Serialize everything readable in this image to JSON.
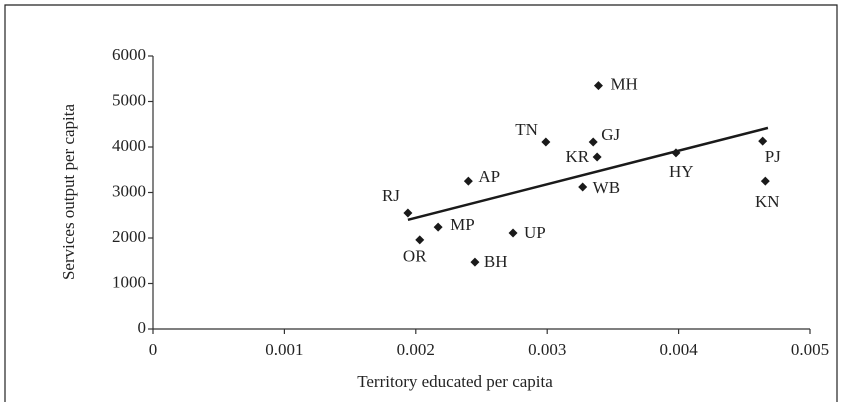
{
  "chart_data": {
    "type": "scatter",
    "x_label": "Territory educated per capita",
    "y_label": "Services output per capita",
    "point_labels": [
      "MH",
      "TN",
      "GJ",
      "KR",
      "AP",
      "WB",
      "HY",
      "PJ",
      "KN",
      "RJ",
      "MP",
      "OR",
      "UP",
      "BH"
    ],
    "x": [
      0.00339,
      0.00299,
      0.00335,
      0.00338,
      0.0024,
      0.00327,
      0.00398,
      0.00464,
      0.00466,
      0.00194,
      0.00217,
      0.00203,
      0.00274,
      0.00245
    ],
    "values": [
      5350,
      4110,
      4110,
      3780,
      3250,
      3120,
      3870,
      4130,
      3250,
      2550,
      2240,
      1960,
      2110,
      1470
    ],
    "color": "#1a1a1a",
    "trend_line": {
      "x": [
        0.00194,
        0.00468
      ],
      "values": [
        2400,
        4420
      ],
      "color": "#1a1a1a"
    },
    "xlim": [
      0,
      0.005
    ],
    "ylim": [
      0,
      6000
    ],
    "xticks": [
      0,
      0.001,
      0.002,
      0.003,
      0.004,
      0.005
    ],
    "yticks": [
      0,
      1000,
      2000,
      3000,
      4000,
      5000,
      6000
    ]
  }
}
